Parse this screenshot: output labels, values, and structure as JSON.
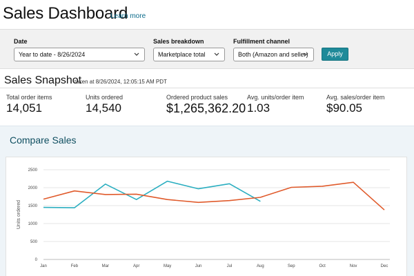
{
  "header": {
    "title": "Sales Dashboard",
    "learn_more": "Learn more"
  },
  "filters": {
    "date": {
      "label": "Date",
      "value": "Year to date - 8/26/2024"
    },
    "breakdown": {
      "label": "Sales breakdown",
      "value": "Marketplace total"
    },
    "fulfillment": {
      "label": "Fulfillment channel",
      "value": "Both (Amazon and seller)"
    },
    "apply_label": "Apply"
  },
  "snapshot": {
    "title": "Sales Snapshot",
    "taken": "taken at 8/26/2024, 12:05:15 AM PDT",
    "metrics": [
      {
        "label": "Total order items",
        "value": "14,051"
      },
      {
        "label": "Units ordered",
        "value": "14,540"
      },
      {
        "label": "Ordered product sales",
        "value": "$1,265,362.20"
      },
      {
        "label": "Avg. units/order item",
        "value": "1.03"
      },
      {
        "label": "Avg. sales/order item",
        "value": "$90.05"
      }
    ]
  },
  "compare": {
    "title": "Compare Sales"
  },
  "colors": {
    "teal": "#2aaec0",
    "orange": "#e05a2b",
    "apply_button": "#1f8a99"
  },
  "chart_data": {
    "type": "line",
    "ylabel": "Units ordered",
    "ylim": [
      0,
      2500
    ],
    "yticks": [
      0,
      500,
      1000,
      1500,
      2000,
      2500
    ],
    "categories": [
      "Jan",
      "Feb",
      "Mar",
      "Apr",
      "May",
      "Jun",
      "Jul",
      "Aug",
      "Sep",
      "Oct",
      "Nov",
      "Dec"
    ],
    "grid": true,
    "series": [
      {
        "color": "#2aaec0",
        "values": [
          1450,
          1440,
          2100,
          1670,
          2180,
          1970,
          2110,
          1620,
          null,
          null,
          null,
          null
        ]
      },
      {
        "color": "#e05a2b",
        "values": [
          1680,
          1910,
          1810,
          1820,
          1670,
          1590,
          1640,
          1730,
          2010,
          2040,
          2150,
          1380
        ]
      }
    ]
  }
}
